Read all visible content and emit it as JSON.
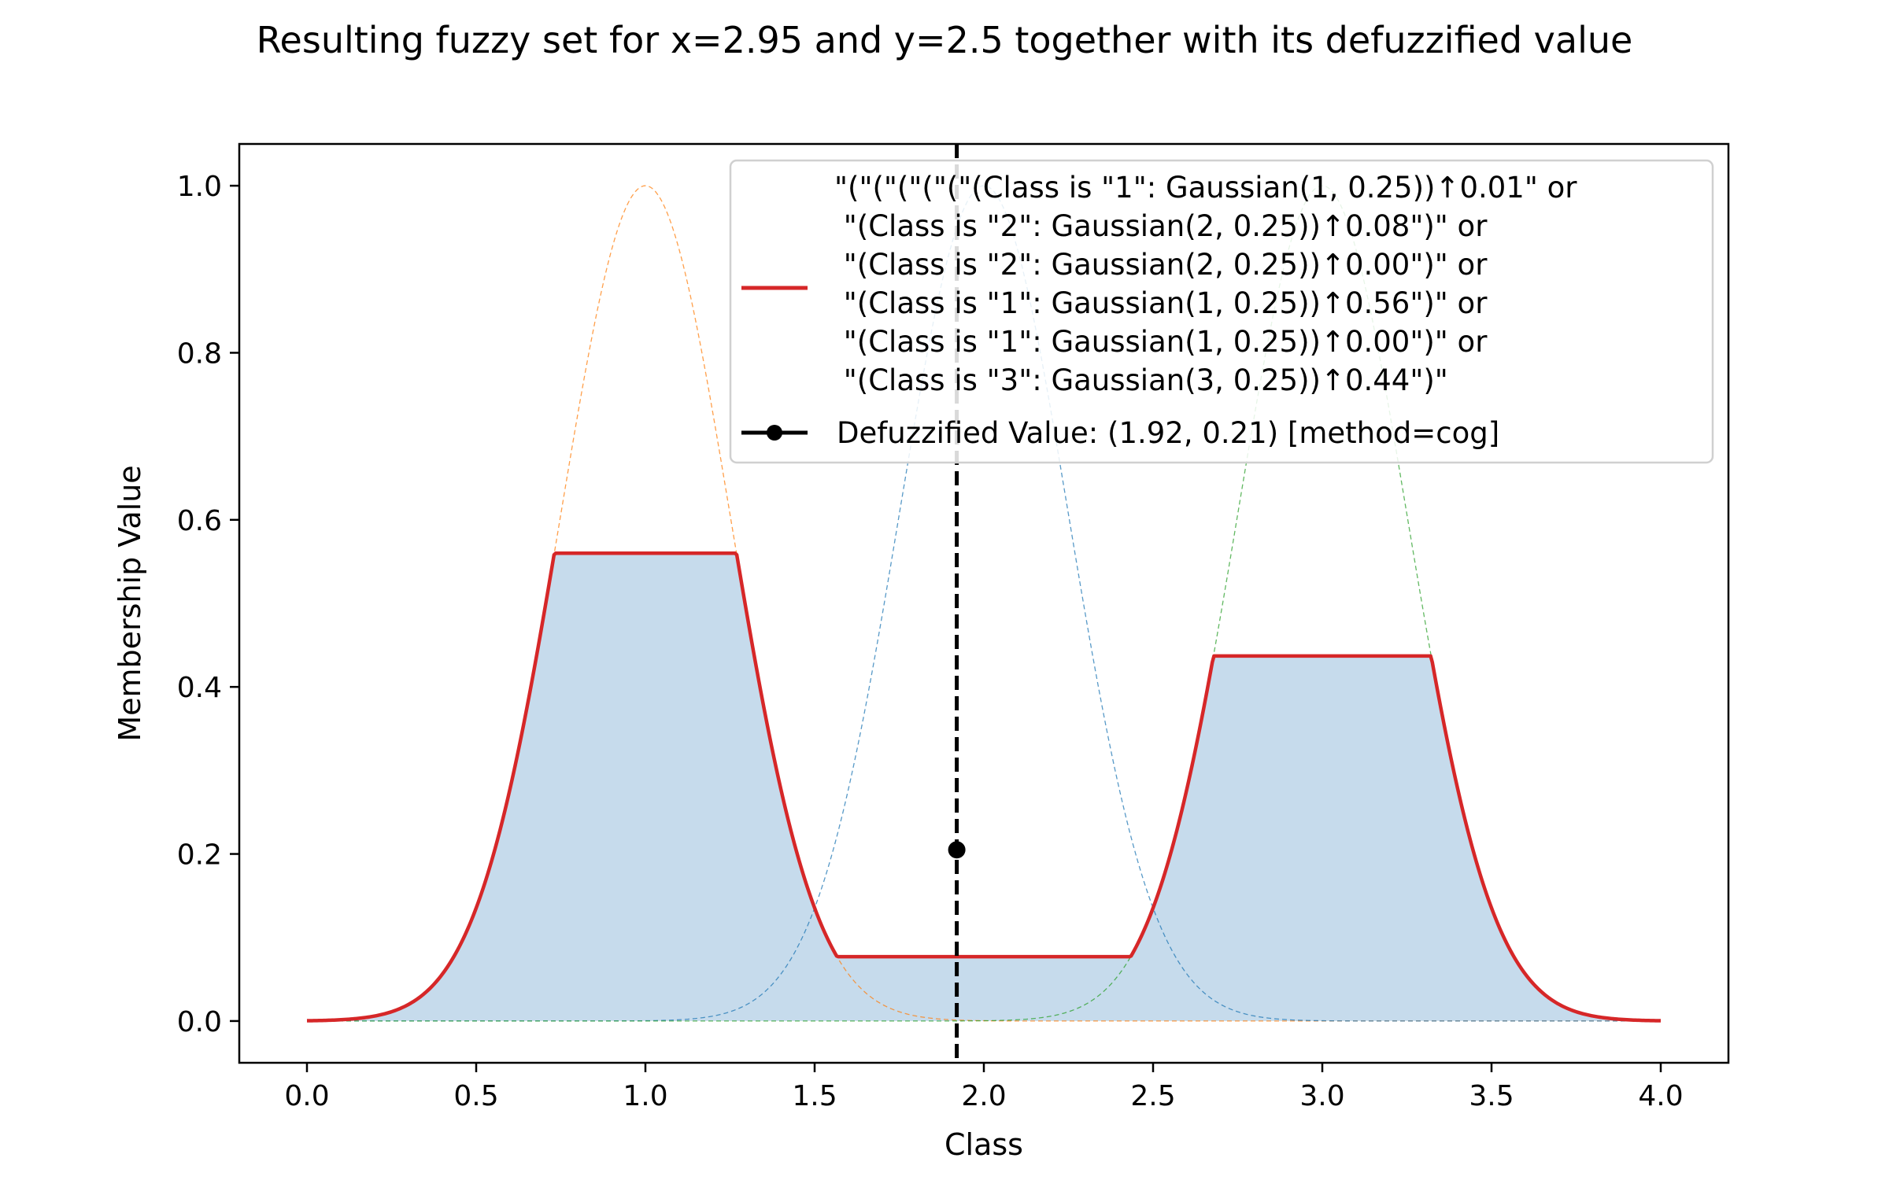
{
  "chart_data": {
    "type": "line",
    "title": "Resulting fuzzy set for x=2.95 and y=2.5 together with its defuzzified value",
    "xlabel": "Class",
    "ylabel": "Membership Value",
    "xlim": [
      -0.2,
      4.2
    ],
    "ylim": [
      -0.05,
      1.05
    ],
    "grid": false,
    "legend_position": "top-right",
    "x_ticks": [
      "0.0",
      "0.5",
      "1.0",
      "1.5",
      "2.0",
      "2.5",
      "3.0",
      "3.5",
      "4.0"
    ],
    "y_ticks": [
      "0.0",
      "0.2",
      "0.4",
      "0.6",
      "0.8",
      "1.0"
    ],
    "component_sets": [
      {
        "center": 1,
        "sigma": 0.25,
        "color": "#ff7f0e"
      },
      {
        "center": 2,
        "sigma": 0.25,
        "color": "#1f77b4"
      },
      {
        "center": 3,
        "sigma": 0.25,
        "color": "#2ca02c"
      }
    ],
    "result_set": {
      "legend_label": [
        "\"(\"(\"(\"(\"(\"(Class is \"1\": Gaussian(1, 0.25))↑0.01\" or",
        " \"(Class is \"2\": Gaussian(2, 0.25))↑0.08\")\" or",
        " \"(Class is \"2\": Gaussian(2, 0.25))↑0.00\")\" or",
        " \"(Class is \"1\": Gaussian(1, 0.25))↑0.56\")\" or",
        " \"(Class is \"1\": Gaussian(1, 0.25))↑0.00\")\" or",
        " \"(Class is \"3\": Gaussian(3, 0.25))↑0.44\")\""
      ],
      "color": "#d62728",
      "fill_color": "#c6dbec",
      "x_range": [
        0,
        4
      ],
      "cuts": [
        {
          "center": 1,
          "sigma": 0.25,
          "height": 0.56
        },
        {
          "center": 2,
          "sigma": 0.25,
          "height": 0.077
        },
        {
          "center": 3,
          "sigma": 0.25,
          "height": 0.437
        }
      ]
    },
    "defuzzified": {
      "x": 1.92,
      "y": 0.205,
      "label": "Defuzzified Value: (1.92, 0.21) [method=cog]",
      "color": "#000000"
    }
  }
}
